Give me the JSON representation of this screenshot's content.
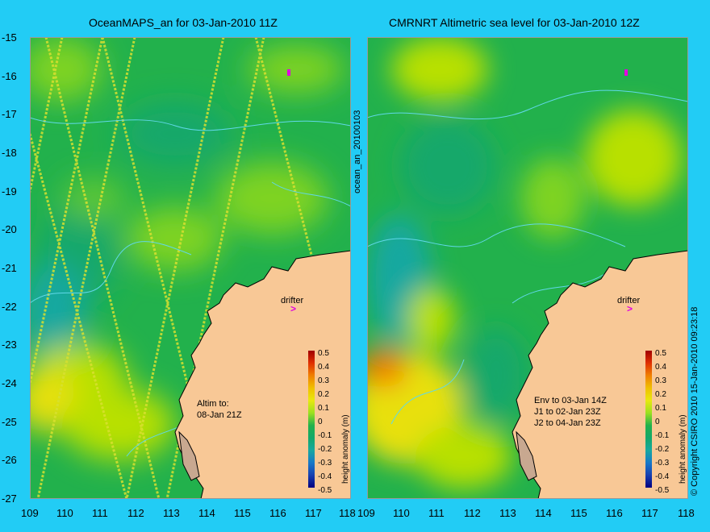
{
  "left_panel": {
    "title": "OceanMAPS_an for 03-Jan-2010 11Z",
    "side_label": "ocean_an_20100103",
    "annotation_lines": [
      "Altim to:",
      "08-Jan 21Z"
    ],
    "drifter_label": "drifter"
  },
  "right_panel": {
    "title": "CMRNRT Altimetric sea level  for 03-Jan-2010 12Z",
    "annotation_lines": [
      "Env to 03-Jan 14Z",
      "J1 to 02-Jan 23Z",
      "J2 to 04-Jan 23Z"
    ],
    "drifter_label": "drifter",
    "side_label": "© Copyright CSIRO 2010   15-Jan-2010 09:23:18"
  },
  "axes": {
    "lat_ticks": [
      "-15",
      "-16",
      "-17",
      "-18",
      "-19",
      "-20",
      "-21",
      "-22",
      "-23",
      "-24",
      "-25",
      "-26",
      "-27"
    ],
    "lon_ticks": [
      "109",
      "110",
      "111",
      "112",
      "113",
      "114",
      "115",
      "116",
      "117",
      "118"
    ]
  },
  "colorbar": {
    "label": "height anomaly (m)",
    "ticks": [
      "0.5",
      "0.4",
      "0.3",
      "0.2",
      "0.1",
      "0",
      "-0.1",
      "-0.2",
      "-0.3",
      "-0.4",
      "-0.5"
    ]
  },
  "colors": {
    "background": "#22ccf5",
    "ocean_base": "#22b14c",
    "land": "#f8c896",
    "contour": "#60d8e8",
    "drifter_marker": "#e000e0"
  }
}
